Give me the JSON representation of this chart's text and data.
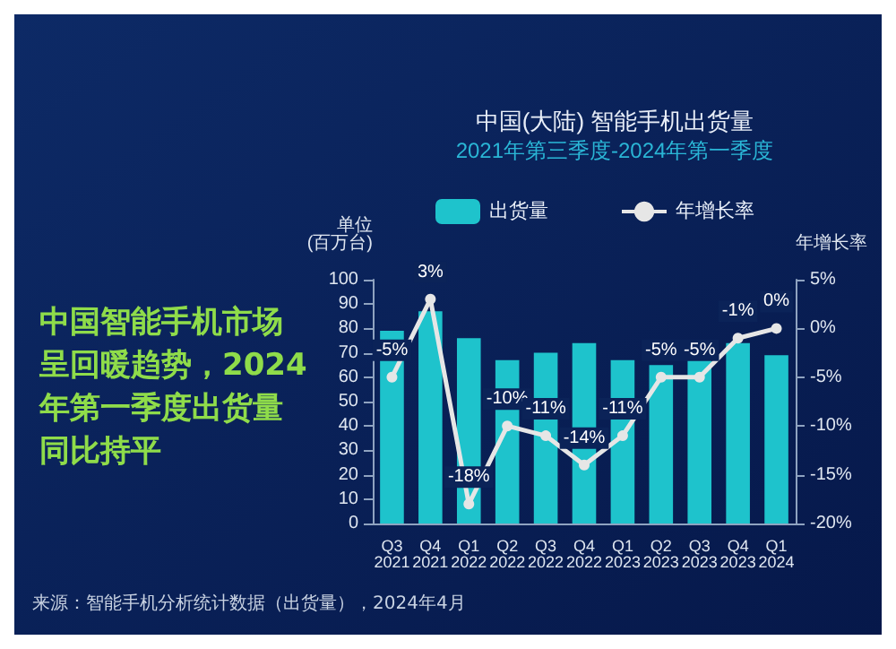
{
  "chart_data": {
    "type": "bar",
    "title": "中国(大陆) 智能手机出货量",
    "subtitle": "2021年第三季度-2024年第一季度",
    "ylabel": "单位\n(百万台)",
    "y2label": "年增长率",
    "annotations": [
      "中国智能手机市场呈回暖趋势，2024年第一季度出货量同比持平",
      "来源：智能手机分析统计数据（出货量），2024年4月"
    ],
    "categories": [
      "Q3\n2021",
      "Q4\n2021",
      "Q1\n2022",
      "Q2\n2022",
      "Q3\n2022",
      "Q4\n2022",
      "Q1\n2023",
      "Q2\n2023",
      "Q3\n2023",
      "Q4\n2023",
      "Q1\n2024"
    ],
    "series": [
      {
        "name": "出货量",
        "color": "#1ec3cc",
        "values": [
          79,
          87,
          76,
          67,
          70,
          74,
          67,
          65,
          67,
          74,
          69
        ]
      },
      {
        "name": "年增长率",
        "type": "line",
        "axis": "y2",
        "color": "#e6e6e6",
        "values": [
          -5,
          3,
          -18,
          -10,
          -11,
          -14,
          -11,
          -5,
          -5,
          -1,
          0
        ],
        "value_labels": [
          "-5%",
          "3%",
          "-18%",
          "-10%",
          "-11%",
          "-14%",
          "-11%",
          "-5%",
          "-5%",
          "-1%",
          "0%"
        ]
      }
    ],
    "ylim": [
      0,
      100
    ],
    "yticks": [
      0,
      10,
      20,
      30,
      40,
      50,
      60,
      70,
      80,
      90,
      100
    ],
    "y2lim": [
      -20,
      5
    ],
    "y2ticks": [
      {
        "value": -20,
        "label": "-20%"
      },
      {
        "value": -15,
        "label": "-15%"
      },
      {
        "value": -10,
        "label": "-10%"
      },
      {
        "value": -5,
        "label": "-5%"
      },
      {
        "value": 0,
        "label": "0%"
      },
      {
        "value": 5,
        "label": "5%"
      }
    ],
    "legend": "top",
    "marker": "circle",
    "grid": false
  }
}
